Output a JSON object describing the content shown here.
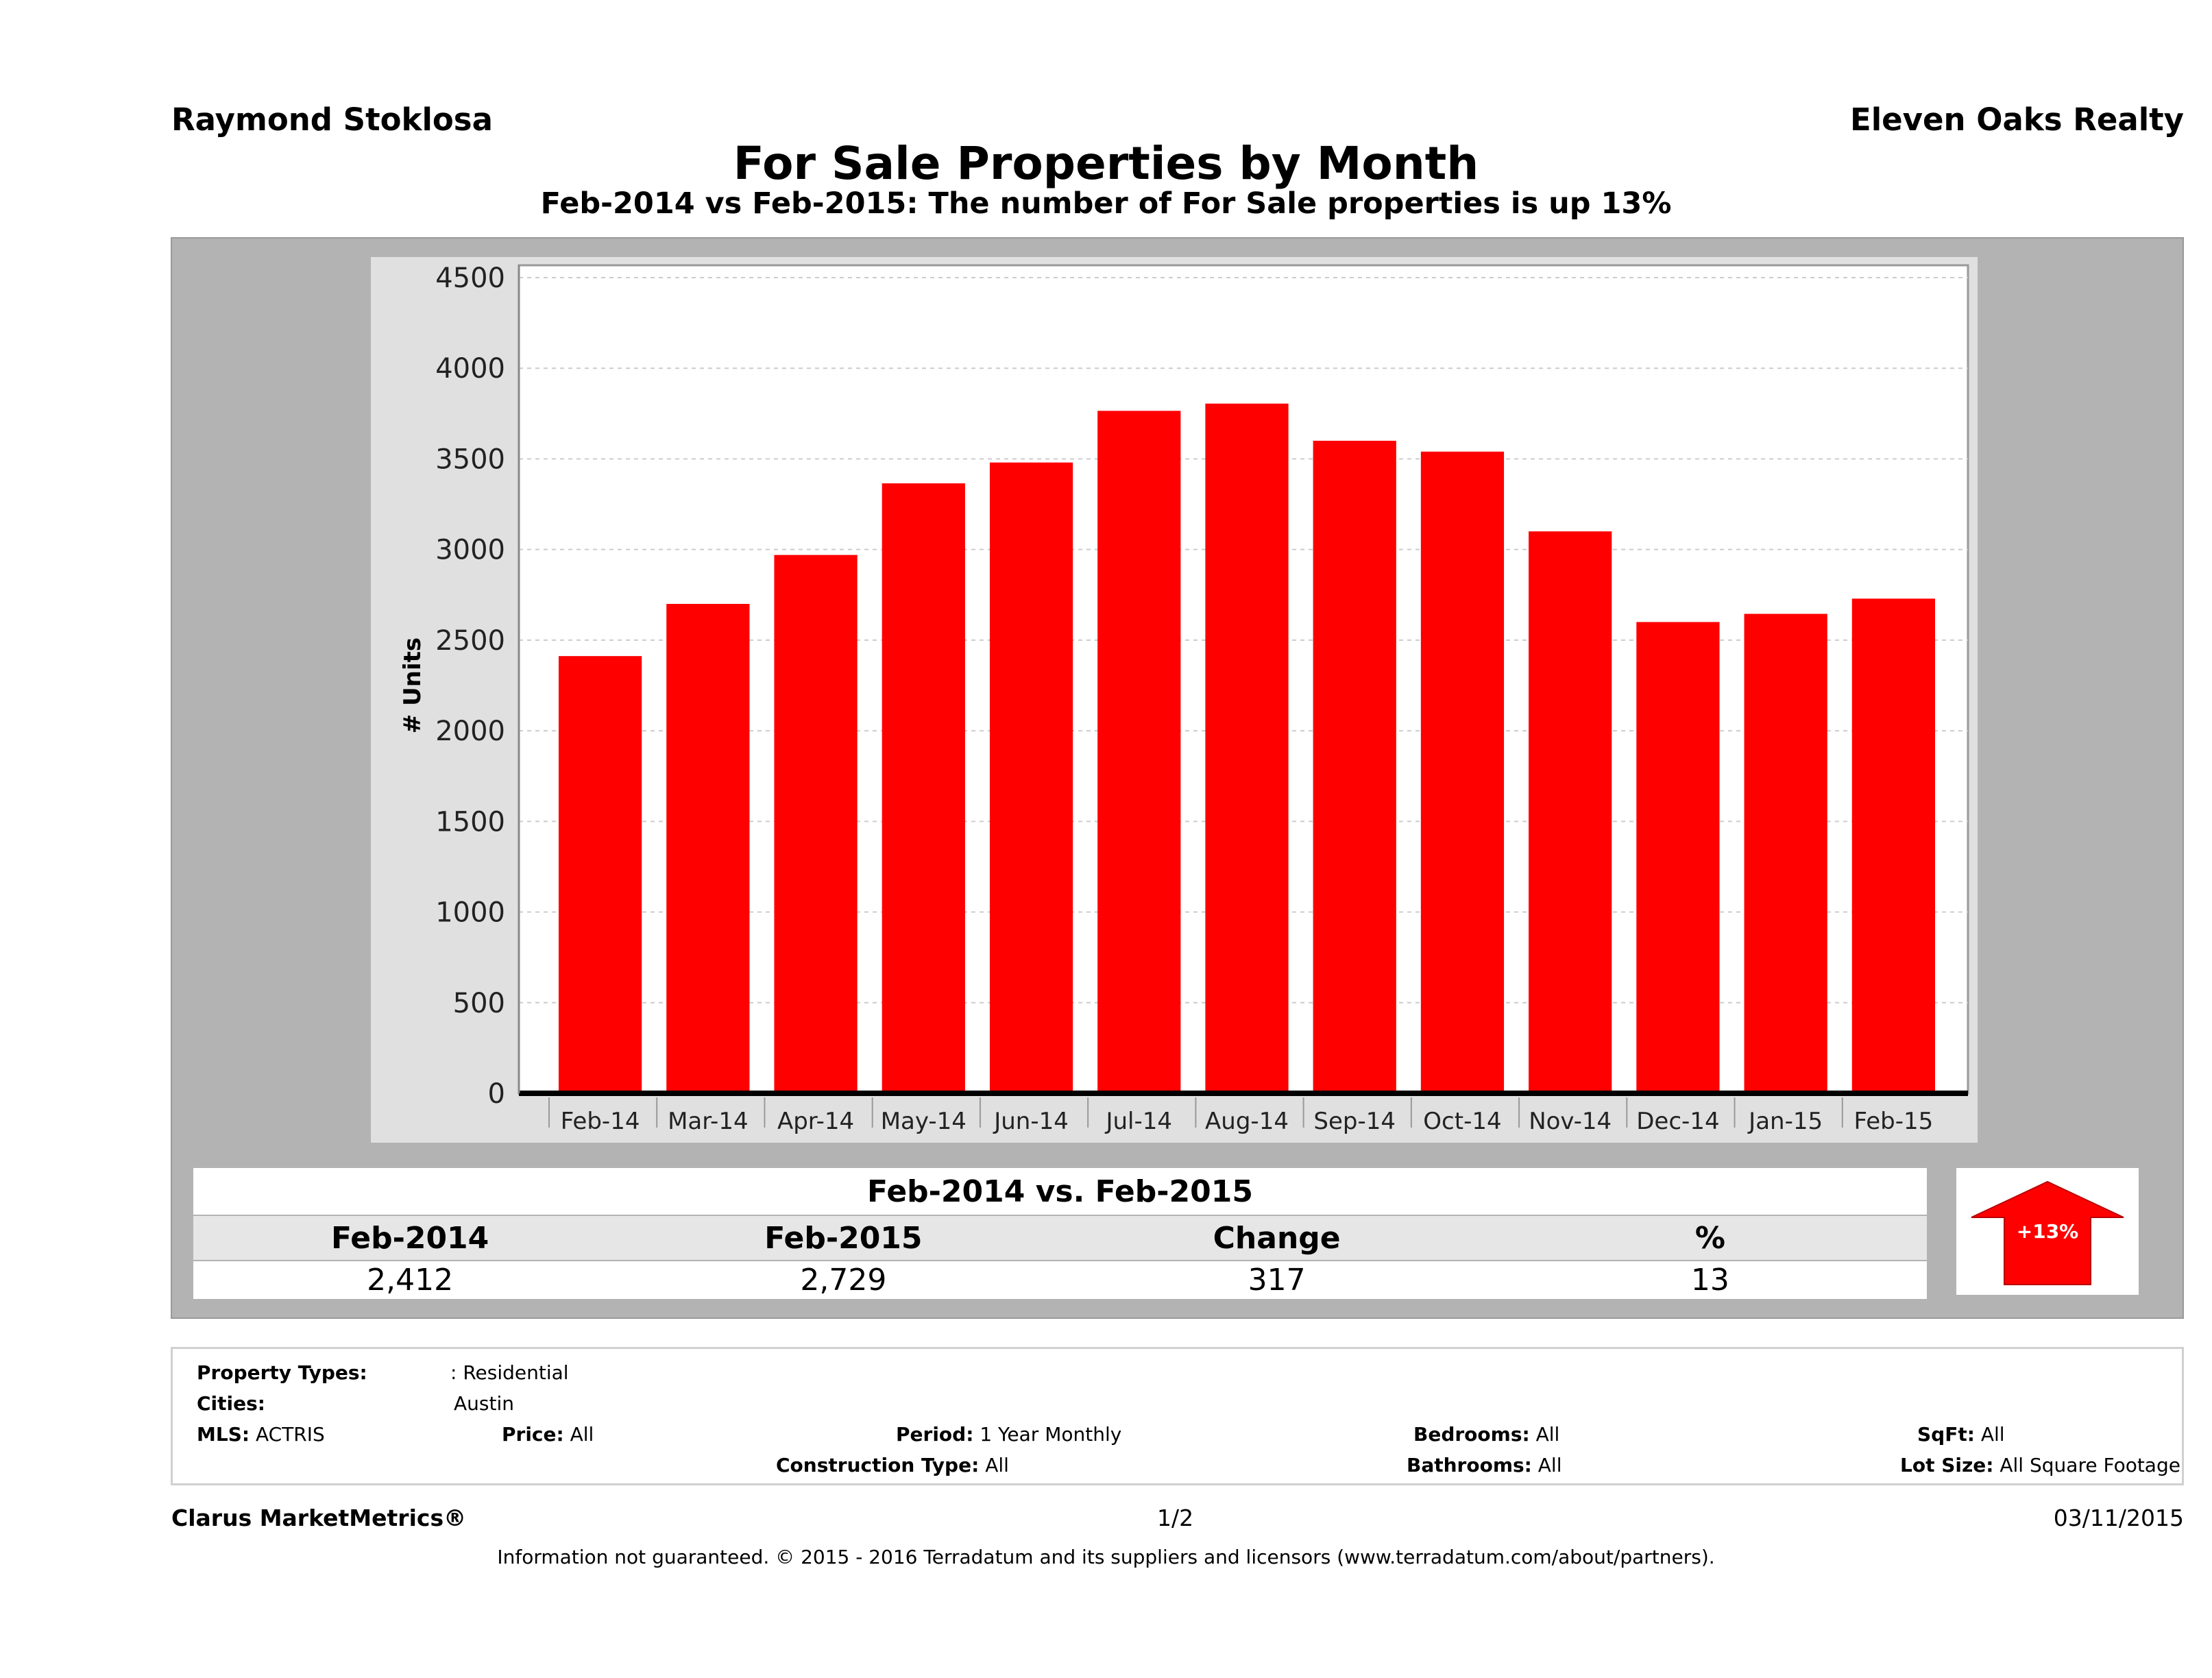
{
  "header": {
    "agent": "Raymond Stoklosa",
    "brokerage": "Eleven Oaks Realty"
  },
  "title": "For Sale Properties by Month",
  "subtitle": "Feb-2014 vs Feb-2015: The number of For Sale  properties is up 13%",
  "chart_data": {
    "type": "bar",
    "ylabel": "# Units",
    "ylim": [
      0,
      4500
    ],
    "yticks": [
      0,
      500,
      1000,
      1500,
      2000,
      2500,
      3000,
      3500,
      4000,
      4500
    ],
    "grid": true,
    "bar_color": "#ff0000",
    "categories": [
      "Feb-14",
      "Mar-14",
      "Apr-14",
      "May-14",
      "Jun-14",
      "Jul-14",
      "Aug-14",
      "Sep-14",
      "Oct-14",
      "Nov-14",
      "Dec-14",
      "Jan-15",
      "Feb-15"
    ],
    "values": [
      2412,
      2700,
      2970,
      3365,
      3480,
      3765,
      3805,
      3600,
      3540,
      3100,
      2600,
      2645,
      2729
    ]
  },
  "summary": {
    "title": "Feb-2014 vs. Feb-2015",
    "headers": [
      "Feb-2014",
      "Feb-2015",
      "Change",
      "%"
    ],
    "values": [
      "2,412",
      "2,729",
      "317",
      "13"
    ],
    "badge": "+13%",
    "badge_color": "#ff0000",
    "badge_icon": "arrow-up-icon"
  },
  "filters": {
    "property_types_label": "Property Types:",
    "property_types": ": Residential",
    "cities_label": "Cities:",
    "cities": "Austin",
    "mls_label": "MLS:",
    "mls": "ACTRIS",
    "price_label": "Price:",
    "price": "All",
    "period_label": "Period:",
    "period": "1 Year Monthly",
    "construction_label": "Construction Type:",
    "construction": "All",
    "bedrooms_label": "Bedrooms:",
    "bedrooms": "All",
    "bathrooms_label": "Bathrooms:",
    "bathrooms": "All",
    "sqft_label": "SqFt:",
    "sqft": "All",
    "lot_label": "Lot Size:",
    "lot": "All Square Footage"
  },
  "footer": {
    "brand": "Clarus MarketMetrics®",
    "page": "1/2",
    "date": "03/11/2015",
    "disclaimer": "Information not guaranteed. © 2015 - 2016 Terradatum and its suppliers and licensors (www.terradatum.com/about/partners)."
  }
}
